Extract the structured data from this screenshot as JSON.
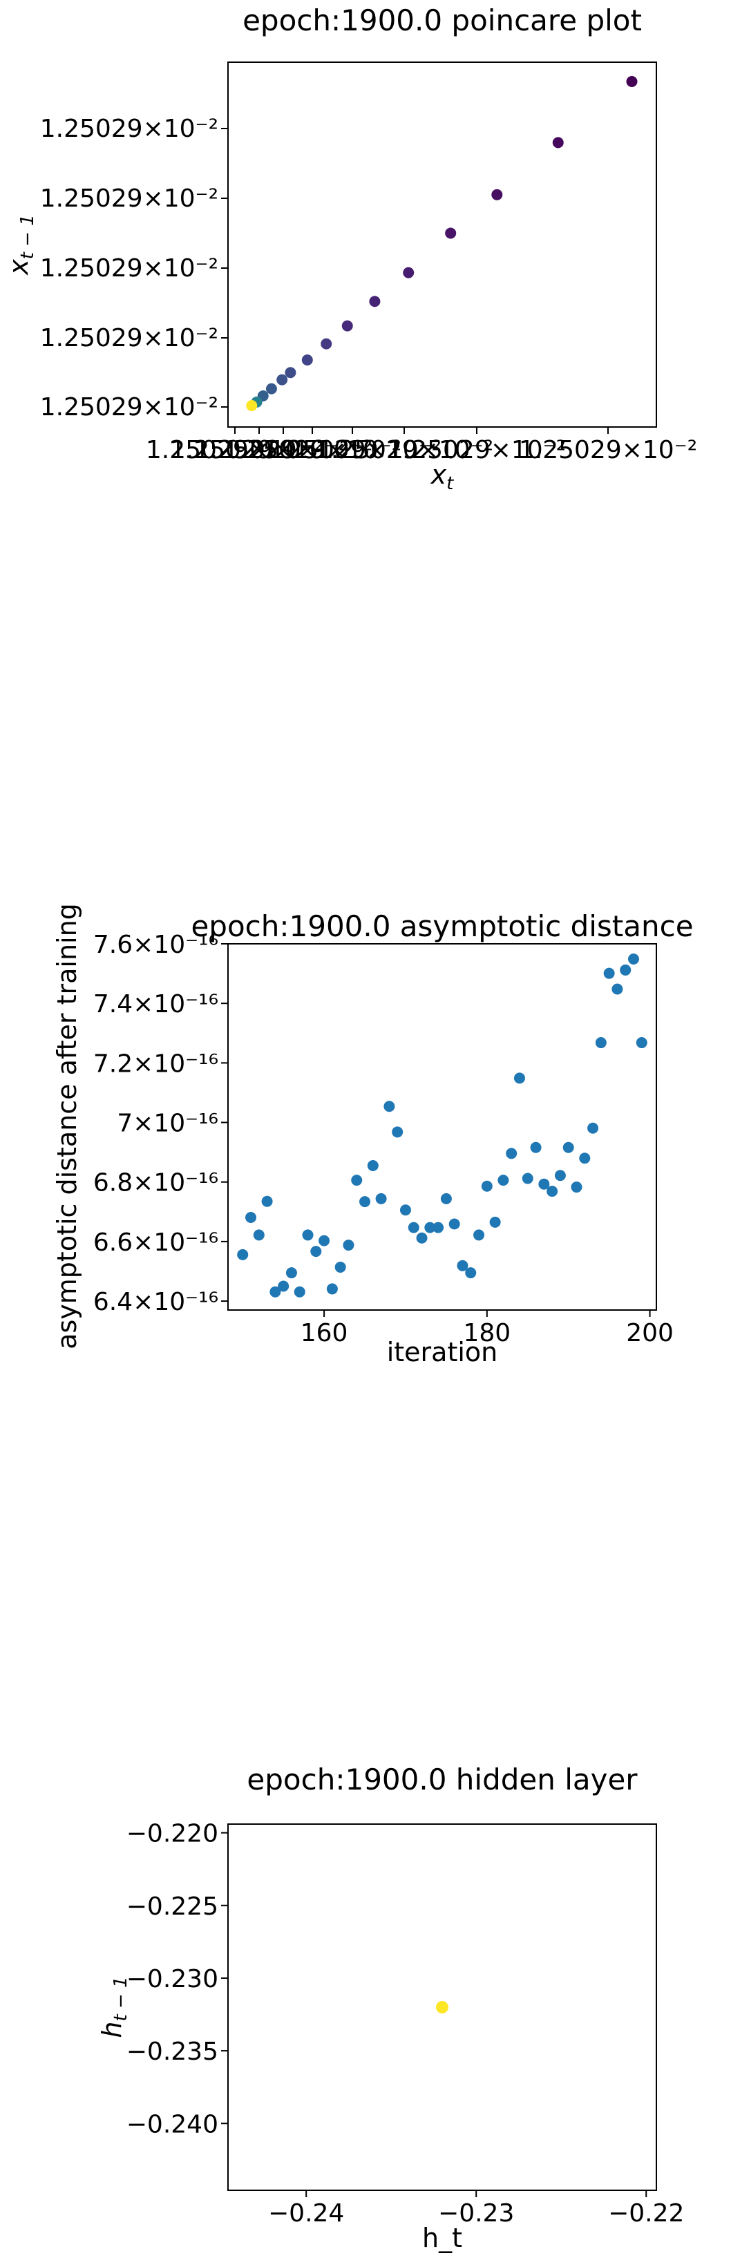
{
  "chart_data": [
    {
      "type": "scatter",
      "title": "epoch:1900.0 poincare plot",
      "xlabel_base": "x",
      "xlabel_sub": "t",
      "ylabel_base": "x",
      "ylabel_sub": "t − 1",
      "x_tick_labels": [
        "1.25029×10⁻²",
        "1.25029×10⁻²",
        "1.25029×10⁻²",
        "1.25029×10⁻²",
        "1.25029×10⁻²",
        "1.25029×10⁻²",
        "1.25029×10⁻²",
        "1.25029×10⁻²"
      ],
      "y_tick_labels": [
        "1.25029×10⁻²",
        "1.25029×10⁻²",
        "1.25029×10⁻²",
        "1.25029×10⁻²",
        "1.25029×10⁻²"
      ],
      "xlim": [
        0.0,
        1.0
      ],
      "ylim": [
        0.0,
        1.0
      ],
      "colormap": "viridis",
      "point_colors": [
        "#440154",
        "#46085c",
        "#470f62",
        "#481467",
        "#471c6e",
        "#472374",
        "#46297a",
        "#443983",
        "#414487",
        "#3e4c8a",
        "#3b528b",
        "#38598c",
        "#355f8d",
        "#26828e",
        "#fde725"
      ],
      "x": [
        0.95,
        0.775,
        0.63,
        0.52,
        0.42,
        0.34,
        0.275,
        0.225,
        0.18,
        0.14,
        0.12,
        0.095,
        0.075,
        0.06,
        0.048
      ],
      "y": [
        0.95,
        0.78,
        0.635,
        0.528,
        0.418,
        0.338,
        0.27,
        0.22,
        0.175,
        0.14,
        0.12,
        0.095,
        0.075,
        0.058,
        0.048
      ]
    },
    {
      "type": "scatter",
      "title": "epoch:1900.0 asymptotic distance",
      "xlabel": "iteration",
      "ylabel": "asymptotic distance after training",
      "xlim": [
        148.2,
        200.8
      ],
      "ylim": [
        6.37e-16,
        7.6e-16
      ],
      "xticks": [
        160,
        180,
        200
      ],
      "ytick_labels": [
        "6.4×10⁻¹⁶",
        "6.6×10⁻¹⁶",
        "6.8×10⁻¹⁶",
        "7×10⁻¹⁶",
        "7.2×10⁻¹⁶",
        "7.4×10⁻¹⁶",
        "7.6×10⁻¹⁶"
      ],
      "ytick_values": [
        6.4e-16,
        6.6e-16,
        6.8e-16,
        7e-16,
        7.2e-16,
        7.4e-16,
        7.6e-16
      ],
      "point_color": "#1f77b4",
      "x": [
        150,
        151,
        152,
        153,
        154,
        155,
        156,
        157,
        158,
        159,
        160,
        161,
        162,
        163,
        164,
        165,
        166,
        167,
        168,
        169,
        170,
        171,
        172,
        173,
        174,
        175,
        176,
        177,
        178,
        179,
        180,
        181,
        182,
        183,
        184,
        185,
        186,
        187,
        188,
        189,
        190,
        191,
        192,
        193,
        194,
        195,
        196,
        197,
        198,
        199
      ],
      "y": [
        6.556e-16,
        6.681e-16,
        6.622e-16,
        6.735e-16,
        6.431e-16,
        6.45e-16,
        6.495e-16,
        6.431e-16,
        6.622e-16,
        6.567e-16,
        6.603e-16,
        6.441e-16,
        6.514e-16,
        6.588e-16,
        6.806e-16,
        6.734e-16,
        6.855e-16,
        6.744e-16,
        7.054e-16,
        6.968e-16,
        6.706e-16,
        6.647e-16,
        6.612e-16,
        6.647e-16,
        6.647e-16,
        6.744e-16,
        6.659e-16,
        6.519e-16,
        6.495e-16,
        6.622e-16,
        6.786e-16,
        6.665e-16,
        6.806e-16,
        6.896e-16,
        7.149e-16,
        6.812e-16,
        6.916e-16,
        6.793e-16,
        6.769e-16,
        6.822e-16,
        6.916e-16,
        6.783e-16,
        6.88e-16,
        6.981e-16,
        7.268e-16,
        7.501e-16,
        7.448e-16,
        7.512e-16,
        7.549e-16,
        7.268e-16
      ]
    },
    {
      "type": "scatter",
      "title": "epoch:1900.0 hidden layer",
      "xlabel": "h_t",
      "ylabel_base": "h",
      "ylabel_sub": "t − 1",
      "xlim": [
        -0.2446,
        -0.2194
      ],
      "ylim": [
        -0.2446,
        -0.2194
      ],
      "xticks": [
        -0.24,
        -0.23,
        -0.22
      ],
      "xtick_labels": [
        "−0.24",
        "−0.23",
        "−0.22"
      ],
      "yticks": [
        -0.22,
        -0.225,
        -0.23,
        -0.235,
        -0.24
      ],
      "ytick_labels": [
        "−0.220",
        "−0.225",
        "−0.230",
        "−0.235",
        "−0.240"
      ],
      "point_color": "#fde725",
      "x": [
        -0.232
      ],
      "y": [
        -0.232
      ]
    }
  ]
}
